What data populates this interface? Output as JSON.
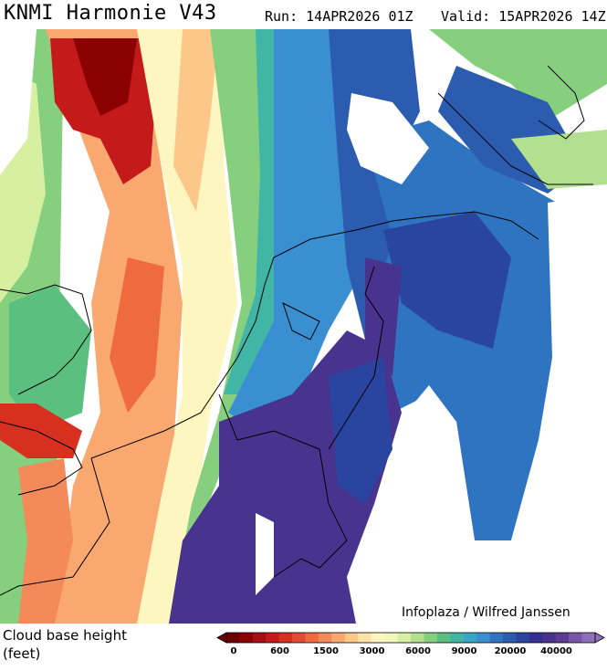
{
  "header": {
    "title": "KNMI Harmonie V43",
    "run": "Run: 14APR2026 01Z",
    "valid": "Valid: 15APR2026 14Z"
  },
  "map": {
    "credit": "Infoplaza / Wilfred Janssen"
  },
  "legend": {
    "title": "Cloud base height",
    "unit": "(feet)",
    "colors": [
      "#6b0000",
      "#8b0000",
      "#a50f15",
      "#c41a1a",
      "#d7301f",
      "#e34a33",
      "#f06a40",
      "#f4895a",
      "#f9a870",
      "#fcc88a",
      "#fde3a7",
      "#fef6c0",
      "#f0f7b8",
      "#d6efa0",
      "#b3e08f",
      "#86cf7f",
      "#5bbf7f",
      "#41b6a6",
      "#3aa6c6",
      "#3a8fd0",
      "#2f74c0",
      "#2b5cb0",
      "#2a45a0",
      "#352f95",
      "#48338f",
      "#5e3a95",
      "#7a54a8",
      "#8e6fba"
    ],
    "labels": [
      "0",
      "600",
      "1500",
      "3000",
      "6000",
      "9000",
      "20000",
      "40000"
    ]
  }
}
